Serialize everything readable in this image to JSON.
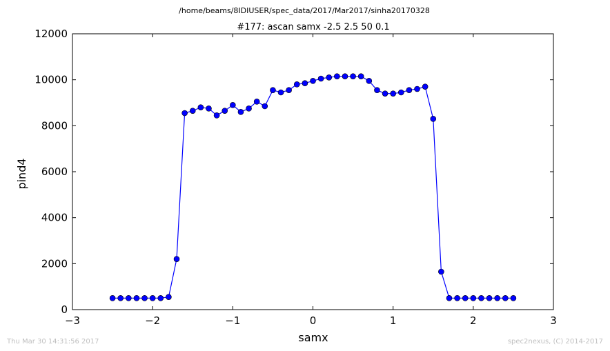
{
  "header": {
    "path": "/home/beams/8IDIUSER/spec_data/2017/Mar2017/sinha20170328",
    "title": "#177: ascan  samx -2.5 2.5  50 0.1"
  },
  "footer": {
    "timestamp": "Thu Mar 30 14:31:56 2017",
    "credit": "spec2nexus, (C) 2014-2017"
  },
  "chart_data": {
    "type": "line",
    "title": "#177: ascan  samx -2.5 2.5  50 0.1",
    "xlabel": "samx",
    "ylabel": "pind4",
    "xlim": [
      -3,
      3
    ],
    "ylim": [
      0,
      12000
    ],
    "xticks": [
      "−3",
      "−2",
      "−1",
      "0",
      "1",
      "2",
      "3"
    ],
    "xtick_values": [
      -3,
      -2,
      -1,
      0,
      1,
      2,
      3
    ],
    "yticks": [
      "0",
      "2000",
      "4000",
      "6000",
      "8000",
      "10000",
      "12000"
    ],
    "ytick_values": [
      0,
      2000,
      4000,
      6000,
      8000,
      10000,
      12000
    ],
    "grid": false,
    "series": [
      {
        "color": "#0000ff",
        "marker": "circle",
        "x": [
          -2.5,
          -2.4,
          -2.3,
          -2.2,
          -2.1,
          -2.0,
          -1.9,
          -1.8,
          -1.7,
          -1.6,
          -1.5,
          -1.4,
          -1.3,
          -1.2,
          -1.1,
          -1.0,
          -0.9,
          -0.8,
          -0.7,
          -0.6,
          -0.5,
          -0.4,
          -0.3,
          -0.2,
          -0.1,
          0.0,
          0.1,
          0.2,
          0.3,
          0.4,
          0.5,
          0.6,
          0.7,
          0.8,
          0.9,
          1.0,
          1.1,
          1.2,
          1.3,
          1.4,
          1.5,
          1.6,
          1.7,
          1.8,
          1.9,
          2.0,
          2.1,
          2.2,
          2.3,
          2.4,
          2.5
        ],
        "y": [
          500,
          500,
          500,
          500,
          500,
          500,
          500,
          550,
          2200,
          8550,
          8650,
          8800,
          8750,
          8450,
          8650,
          8900,
          8600,
          8750,
          9050,
          8850,
          9550,
          9450,
          9550,
          9800,
          9850,
          9950,
          10050,
          10100,
          10150,
          10150,
          10150,
          10150,
          9950,
          9550,
          9400,
          9400,
          9450,
          9550,
          9600,
          9700,
          8300,
          1650,
          500,
          500,
          500,
          500,
          500,
          500,
          500,
          500,
          500
        ]
      }
    ]
  }
}
